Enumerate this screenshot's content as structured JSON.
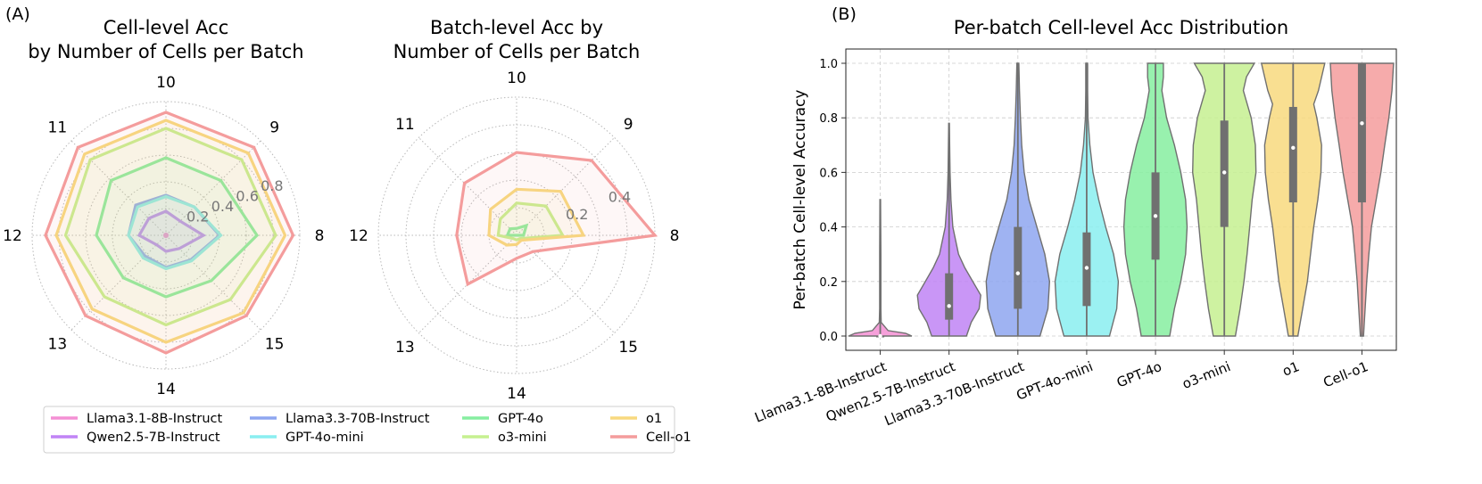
{
  "panel_a_label": "(A)",
  "panel_b_label": "(B)",
  "chart_data": [
    {
      "type": "radar",
      "title_lines": [
        "Cell-level Acc",
        "by Number of Cells per Batch"
      ],
      "axes": [
        "8",
        "9",
        "10",
        "11",
        "12",
        "13",
        "14",
        "15"
      ],
      "rlim": [
        0,
        1
      ],
      "r_ticks": [
        "0.2",
        "0.4",
        "0.6",
        "0.8"
      ],
      "series": [
        {
          "name": "Llama3.1-8B-Instruct",
          "color": "#f48fd4",
          "values": [
            0.01,
            0.01,
            0.01,
            0.01,
            0.01,
            0.01,
            0.01,
            0.01
          ]
        },
        {
          "name": "Qwen2.5-7B-Instruct",
          "color": "#c084f5",
          "values": [
            0.28,
            0.15,
            0.18,
            0.18,
            0.2,
            0.1,
            0.12,
            0.14
          ]
        },
        {
          "name": "Llama3.3-70B-Instruct",
          "color": "#8ea6f0",
          "values": [
            0.4,
            0.3,
            0.3,
            0.32,
            0.28,
            0.22,
            0.24,
            0.26
          ]
        },
        {
          "name": "GPT-4o-mini",
          "color": "#8aeef0",
          "values": [
            0.41,
            0.3,
            0.29,
            0.3,
            0.28,
            0.24,
            0.25,
            0.27
          ]
        },
        {
          "name": "GPT-4o",
          "color": "#86eea0",
          "values": [
            0.68,
            0.58,
            0.58,
            0.58,
            0.52,
            0.45,
            0.46,
            0.48
          ]
        },
        {
          "name": "o3-mini",
          "color": "#c6f090",
          "values": [
            0.82,
            0.8,
            0.8,
            0.8,
            0.75,
            0.65,
            0.67,
            0.68
          ]
        },
        {
          "name": "o1",
          "color": "#f8d97e",
          "values": [
            0.89,
            0.87,
            0.86,
            0.86,
            0.82,
            0.78,
            0.8,
            0.82
          ]
        },
        {
          "name": "Cell-o1",
          "color": "#f49c9c",
          "values": [
            0.95,
            0.93,
            0.92,
            0.93,
            0.9,
            0.85,
            0.88,
            0.85
          ]
        }
      ]
    },
    {
      "type": "radar",
      "title_lines": [
        "Batch-level Acc by",
        "Number of Cells per Batch"
      ],
      "axes": [
        "8",
        "9",
        "10",
        "11",
        "12",
        "13",
        "14",
        "15"
      ],
      "rlim": [
        0,
        0.6
      ],
      "r_ticks": [
        "0.2",
        "0.4"
      ],
      "series": [
        {
          "name": "Llama3.1-8B-Instruct",
          "color": "#f48fd4",
          "values": [
            0,
            0,
            0,
            0,
            0,
            0,
            0,
            0
          ]
        },
        {
          "name": "Qwen2.5-7B-Instruct",
          "color": "#c084f5",
          "values": [
            0,
            0,
            0,
            0,
            0,
            0,
            0,
            0
          ]
        },
        {
          "name": "Llama3.3-70B-Instruct",
          "color": "#8ea6f0",
          "values": [
            0,
            0,
            0,
            0,
            0,
            0,
            0,
            0
          ]
        },
        {
          "name": "GPT-4o-mini",
          "color": "#8aeef0",
          "values": [
            0,
            0,
            0,
            0,
            0,
            0,
            0,
            0
          ]
        },
        {
          "name": "GPT-4o",
          "color": "#86eea0",
          "values": [
            0.03,
            0.06,
            0.03,
            0.04,
            0.04,
            0.0,
            0.0,
            0.0
          ]
        },
        {
          "name": "o3-mini",
          "color": "#c6f090",
          "values": [
            0.2,
            0.18,
            0.14,
            0.1,
            0.08,
            0.02,
            0.02,
            0.02
          ]
        },
        {
          "name": "o1",
          "color": "#f8d97e",
          "values": [
            0.29,
            0.27,
            0.2,
            0.16,
            0.12,
            0.06,
            0.04,
            0.03
          ]
        },
        {
          "name": "Cell-o1",
          "color": "#f49c9c",
          "values": [
            0.6,
            0.46,
            0.36,
            0.32,
            0.26,
            0.3,
            0.1,
            0.1
          ]
        }
      ]
    },
    {
      "type": "violin",
      "title": "Per-batch Cell-level Acc Distribution",
      "ylabel": "Per-batch Cell-level Accuracy",
      "ylim": [
        0,
        1
      ],
      "y_ticks": [
        "0.0",
        "0.2",
        "0.4",
        "0.6",
        "0.8",
        "1.0"
      ],
      "categories": [
        "Llama3.1-8B-Instruct",
        "Qwen2.5-7B-Instruct",
        "Llama3.3-70B-Instruct",
        "GPT-4o-mini",
        "GPT-4o",
        "o3-mini",
        "o1",
        "Cell-o1"
      ],
      "colors": [
        "#f48fd4",
        "#c084f5",
        "#8ea6f0",
        "#8aeef0",
        "#86eea0",
        "#c6f090",
        "#f8d97e",
        "#f49c9c"
      ],
      "stats": [
        {
          "min": 0.0,
          "q1": 0.0,
          "median": 0.0,
          "q3": 0.0,
          "max": 0.5
        },
        {
          "min": 0.0,
          "q1": 0.06,
          "median": 0.11,
          "q3": 0.23,
          "max": 0.78
        },
        {
          "min": 0.0,
          "q1": 0.1,
          "median": 0.23,
          "q3": 0.4,
          "max": 1.0
        },
        {
          "min": 0.0,
          "q1": 0.11,
          "median": 0.25,
          "q3": 0.38,
          "max": 1.0
        },
        {
          "min": 0.0,
          "q1": 0.28,
          "median": 0.44,
          "q3": 0.6,
          "max": 1.0
        },
        {
          "min": 0.0,
          "q1": 0.4,
          "median": 0.6,
          "q3": 0.79,
          "max": 1.0
        },
        {
          "min": 0.0,
          "q1": 0.49,
          "median": 0.69,
          "q3": 0.84,
          "max": 1.0
        },
        {
          "min": 0.0,
          "q1": 0.49,
          "median": 0.78,
          "q3": 1.0,
          "max": 1.0
        }
      ],
      "density": [
        [
          [
            0.0,
            1.0
          ],
          [
            0.01,
            0.8
          ],
          [
            0.02,
            0.25
          ],
          [
            0.05,
            0.03
          ],
          [
            0.1,
            0.02
          ],
          [
            0.3,
            0.02
          ],
          [
            0.5,
            0.01
          ]
        ],
        [
          [
            0.0,
            0.55
          ],
          [
            0.05,
            0.7
          ],
          [
            0.1,
            0.95
          ],
          [
            0.15,
            1.0
          ],
          [
            0.2,
            0.75
          ],
          [
            0.25,
            0.5
          ],
          [
            0.3,
            0.3
          ],
          [
            0.4,
            0.12
          ],
          [
            0.5,
            0.06
          ],
          [
            0.6,
            0.03
          ],
          [
            0.78,
            0.01
          ]
        ],
        [
          [
            0.0,
            0.7
          ],
          [
            0.1,
            0.95
          ],
          [
            0.2,
            1.0
          ],
          [
            0.3,
            0.85
          ],
          [
            0.4,
            0.6
          ],
          [
            0.5,
            0.35
          ],
          [
            0.6,
            0.2
          ],
          [
            0.7,
            0.12
          ],
          [
            0.8,
            0.08
          ],
          [
            0.9,
            0.05
          ],
          [
            1.0,
            0.03
          ]
        ],
        [
          [
            0.0,
            0.72
          ],
          [
            0.1,
            0.95
          ],
          [
            0.2,
            1.0
          ],
          [
            0.3,
            0.85
          ],
          [
            0.4,
            0.6
          ],
          [
            0.5,
            0.38
          ],
          [
            0.6,
            0.2
          ],
          [
            0.7,
            0.1
          ],
          [
            0.8,
            0.04
          ],
          [
            0.9,
            0.03
          ],
          [
            1.0,
            0.03
          ]
        ],
        [
          [
            0.0,
            0.45
          ],
          [
            0.1,
            0.6
          ],
          [
            0.2,
            0.8
          ],
          [
            0.3,
            0.95
          ],
          [
            0.4,
            1.0
          ],
          [
            0.5,
            0.95
          ],
          [
            0.6,
            0.8
          ],
          [
            0.7,
            0.6
          ],
          [
            0.8,
            0.35
          ],
          [
            0.9,
            0.2
          ],
          [
            0.95,
            0.25
          ],
          [
            1.0,
            0.25
          ]
        ],
        [
          [
            0.0,
            0.35
          ],
          [
            0.1,
            0.5
          ],
          [
            0.2,
            0.62
          ],
          [
            0.3,
            0.72
          ],
          [
            0.4,
            0.8
          ],
          [
            0.5,
            0.88
          ],
          [
            0.6,
            1.0
          ],
          [
            0.7,
            0.98
          ],
          [
            0.8,
            0.85
          ],
          [
            0.9,
            0.6
          ],
          [
            0.95,
            0.7
          ],
          [
            1.0,
            0.95
          ]
        ],
        [
          [
            0.0,
            0.15
          ],
          [
            0.1,
            0.3
          ],
          [
            0.2,
            0.45
          ],
          [
            0.3,
            0.55
          ],
          [
            0.4,
            0.65
          ],
          [
            0.5,
            0.78
          ],
          [
            0.6,
            0.88
          ],
          [
            0.7,
            0.9
          ],
          [
            0.8,
            0.75
          ],
          [
            0.85,
            0.65
          ],
          [
            0.9,
            0.8
          ],
          [
            1.0,
            1.0
          ]
        ],
        [
          [
            0.0,
            0.05
          ],
          [
            0.1,
            0.1
          ],
          [
            0.2,
            0.15
          ],
          [
            0.3,
            0.22
          ],
          [
            0.4,
            0.3
          ],
          [
            0.5,
            0.45
          ],
          [
            0.6,
            0.6
          ],
          [
            0.7,
            0.72
          ],
          [
            0.8,
            0.85
          ],
          [
            0.9,
            0.95
          ],
          [
            1.0,
            1.0
          ]
        ]
      ]
    }
  ],
  "legend": {
    "items": [
      {
        "label": "Llama3.1-8B-Instruct",
        "color": "#f48fd4"
      },
      {
        "label": "Qwen2.5-7B-Instruct",
        "color": "#c084f5"
      },
      {
        "label": "Llama3.3-70B-Instruct",
        "color": "#8ea6f0"
      },
      {
        "label": "GPT-4o-mini",
        "color": "#8aeef0"
      },
      {
        "label": "GPT-4o",
        "color": "#86eea0"
      },
      {
        "label": "o3-mini",
        "color": "#c6f090"
      },
      {
        "label": "o1",
        "color": "#f8d97e"
      },
      {
        "label": "Cell-o1",
        "color": "#f49c9c"
      }
    ]
  }
}
